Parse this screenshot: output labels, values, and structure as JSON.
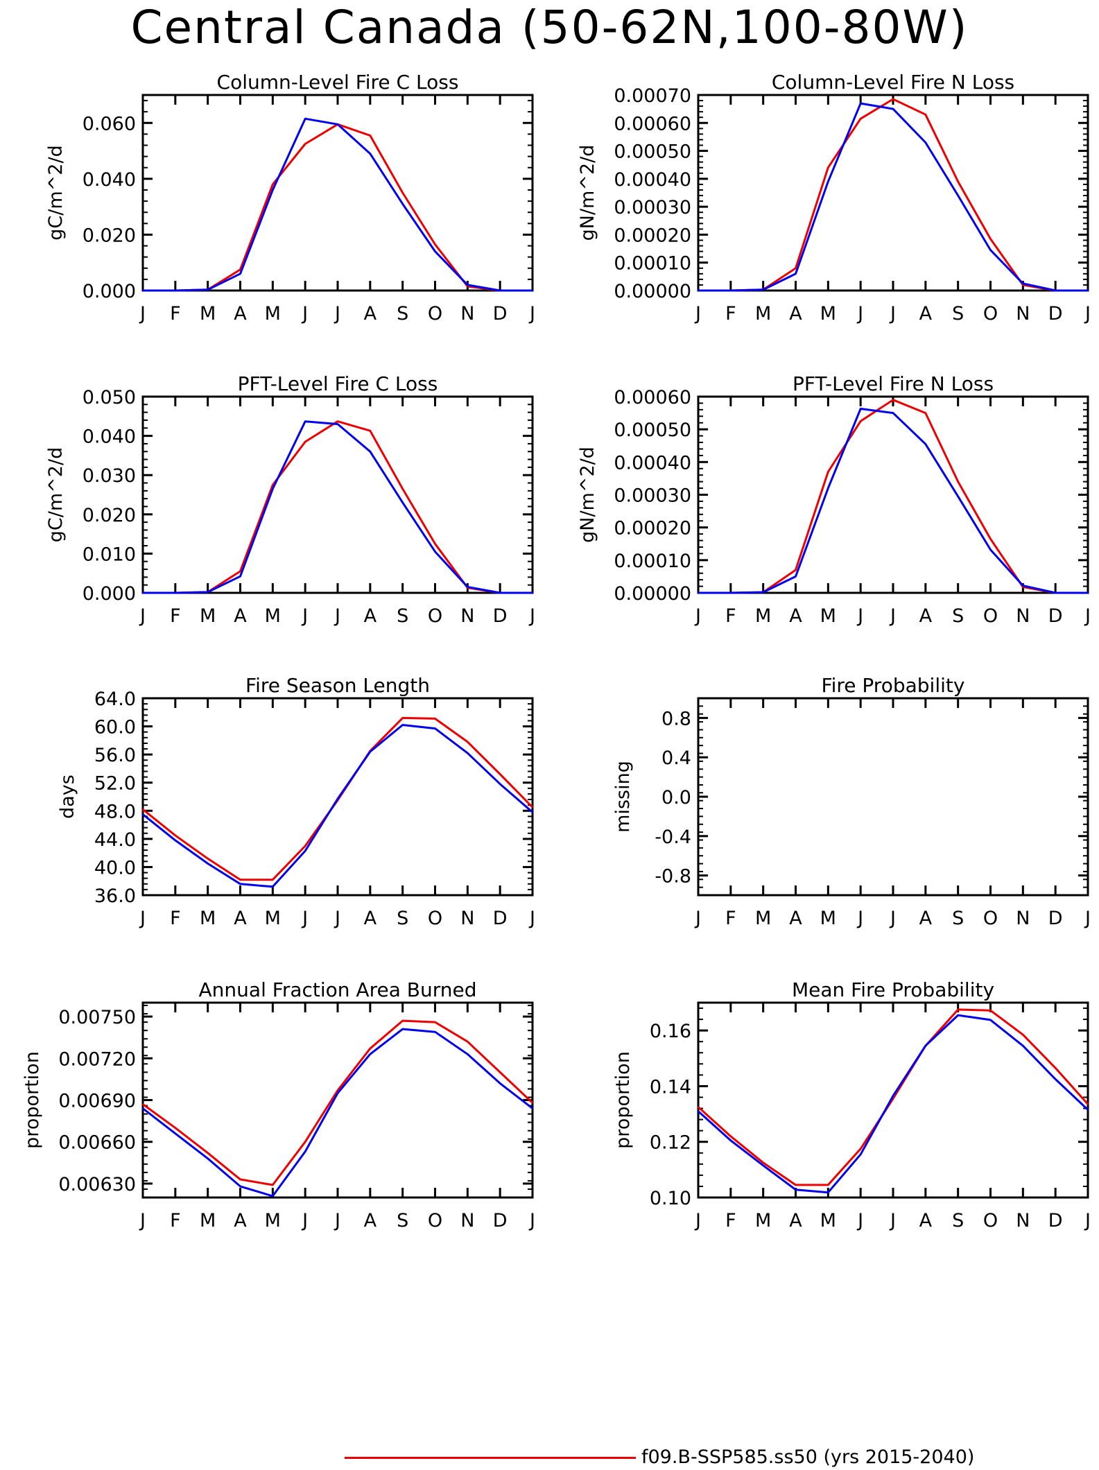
{
  "title": "Central Canada (50-62N,100-80W)",
  "colors": {
    "series1": "#ee0000",
    "series2": "#0000ee",
    "axis": "#000000"
  },
  "legend": {
    "label": "f09.B-SSP585.ss50 (yrs 2015-2040)"
  },
  "chart_data": [
    {
      "type": "line",
      "title": "Column-Level Fire C Loss",
      "ylabel": "gC/m^2/d",
      "categories": [
        "J",
        "F",
        "M",
        "A",
        "M",
        "J",
        "J",
        "A",
        "S",
        "O",
        "N",
        "D",
        "J"
      ],
      "ylim": [
        0,
        0.07
      ],
      "yticks": [
        0,
        0.02,
        0.04,
        0.06
      ],
      "ytick_labels": [
        "0.000",
        "0.020",
        "0.040",
        "0.060"
      ],
      "series": [
        {
          "values": [
            0,
            0,
            0.0003,
            0.0075,
            0.038,
            0.0525,
            0.0595,
            0.0555,
            0.035,
            0.0165,
            0.0015,
            0,
            0
          ]
        },
        {
          "values": [
            0,
            0,
            0.0003,
            0.006,
            0.036,
            0.0615,
            0.0595,
            0.049,
            0.031,
            0.014,
            0.002,
            0,
            0
          ]
        }
      ]
    },
    {
      "type": "line",
      "title": "Column-Level Fire N Loss",
      "ylabel": "gN/m^2/d",
      "categories": [
        "J",
        "F",
        "M",
        "A",
        "M",
        "J",
        "J",
        "A",
        "S",
        "O",
        "N",
        "D",
        "J"
      ],
      "ylim": [
        0,
        0.0007
      ],
      "yticks": [
        0,
        0.0001,
        0.0002,
        0.0003,
        0.0004,
        0.0005,
        0.0006,
        0.0007
      ],
      "ytick_labels": [
        "0.00000",
        "0.00010",
        "0.00020",
        "0.00030",
        "0.00040",
        "0.00050",
        "0.00060",
        "0.00070"
      ],
      "series": [
        {
          "values": [
            0,
            0,
            3e-06,
            8e-05,
            0.00044,
            0.000615,
            0.000685,
            0.00063,
            0.00039,
            0.000185,
            2e-05,
            0,
            0
          ]
        },
        {
          "values": [
            0,
            0,
            3e-06,
            6e-05,
            0.00039,
            0.00067,
            0.00065,
            0.00053,
            0.00034,
            0.000145,
            2.5e-05,
            0,
            0
          ]
        }
      ]
    },
    {
      "type": "line",
      "title": "PFT-Level Fire C Loss",
      "ylabel": "gC/m^2/d",
      "categories": [
        "J",
        "F",
        "M",
        "A",
        "M",
        "J",
        "J",
        "A",
        "S",
        "O",
        "N",
        "D",
        "J"
      ],
      "ylim": [
        0,
        0.05
      ],
      "yticks": [
        0,
        0.01,
        0.02,
        0.03,
        0.04,
        0.05
      ],
      "ytick_labels": [
        "0.000",
        "0.010",
        "0.020",
        "0.030",
        "0.040",
        "0.050"
      ],
      "series": [
        {
          "values": [
            0,
            0,
            0.0002,
            0.0055,
            0.0275,
            0.0385,
            0.0437,
            0.0413,
            0.0265,
            0.0125,
            0.0013,
            0,
            0
          ]
        },
        {
          "values": [
            0,
            0,
            0.0002,
            0.0042,
            0.0265,
            0.0437,
            0.043,
            0.036,
            0.023,
            0.0105,
            0.0015,
            0,
            0
          ]
        }
      ]
    },
    {
      "type": "line",
      "title": "PFT-Level Fire N Loss",
      "ylabel": "gN/m^2/d",
      "categories": [
        "J",
        "F",
        "M",
        "A",
        "M",
        "J",
        "J",
        "A",
        "S",
        "O",
        "N",
        "D",
        "J"
      ],
      "ylim": [
        0,
        0.0006
      ],
      "yticks": [
        0,
        0.0001,
        0.0002,
        0.0003,
        0.0004,
        0.0005,
        0.0006
      ],
      "ytick_labels": [
        "0.00000",
        "0.00010",
        "0.00020",
        "0.00030",
        "0.00040",
        "0.00050",
        "0.00060"
      ],
      "series": [
        {
          "values": [
            0,
            0,
            2e-06,
            7e-05,
            0.00037,
            0.000525,
            0.00059,
            0.00055,
            0.00034,
            0.000165,
            1.8e-05,
            0,
            0
          ]
        },
        {
          "values": [
            0,
            0,
            2e-06,
            5e-05,
            0.00032,
            0.000563,
            0.00055,
            0.000455,
            0.000295,
            0.000132,
            2.2e-05,
            0,
            0
          ]
        }
      ]
    },
    {
      "type": "line",
      "title": "Fire Season Length",
      "ylabel": "days",
      "categories": [
        "J",
        "F",
        "M",
        "A",
        "M",
        "J",
        "J",
        "A",
        "S",
        "O",
        "N",
        "D",
        "J"
      ],
      "ylim": [
        36,
        64
      ],
      "yticks": [
        36,
        40,
        44,
        48,
        52,
        56,
        60,
        64
      ],
      "ytick_labels": [
        "36.0",
        "40.0",
        "44.0",
        "48.0",
        "52.0",
        "56.0",
        "60.0",
        "64.0"
      ],
      "series": [
        {
          "values": [
            48.2,
            44.5,
            41.2,
            38.2,
            38.2,
            43,
            49.5,
            56.5,
            61.2,
            61.1,
            57.8,
            53.2,
            48.5
          ]
        },
        {
          "values": [
            47.5,
            43.8,
            40.5,
            37.6,
            37.2,
            42.3,
            49.7,
            56.4,
            60.2,
            59.7,
            56.2,
            51.8,
            47.8
          ]
        }
      ]
    },
    {
      "type": "line",
      "title": "Fire Probability",
      "ylabel": "missing",
      "categories": [
        "J",
        "F",
        "M",
        "A",
        "M",
        "J",
        "J",
        "A",
        "S",
        "O",
        "N",
        "D",
        "J"
      ],
      "ylim": [
        -1,
        1
      ],
      "yticks": [
        -0.8,
        -0.4,
        0,
        0.4,
        0.8
      ],
      "ytick_labels": [
        "-0.8",
        "-0.4",
        "0.0",
        "0.4",
        "0.8"
      ],
      "series": []
    },
    {
      "type": "line",
      "title": "Annual Fraction Area Burned",
      "ylabel": "proportion",
      "categories": [
        "J",
        "F",
        "M",
        "A",
        "M",
        "J",
        "J",
        "A",
        "S",
        "O",
        "N",
        "D",
        "J"
      ],
      "ylim": [
        0.0062,
        0.0076
      ],
      "yticks": [
        0.0063,
        0.0066,
        0.0069,
        0.0072,
        0.0075
      ],
      "ytick_labels": [
        "0.00630",
        "0.00660",
        "0.00690",
        "0.00720",
        "0.00750"
      ],
      "series": [
        {
          "values": [
            0.00687,
            0.0067,
            0.00652,
            0.00633,
            0.00629,
            0.0066,
            0.00697,
            0.00727,
            0.00747,
            0.00746,
            0.00732,
            0.0071,
            0.00688
          ]
        },
        {
          "values": [
            0.00684,
            0.00666,
            0.00648,
            0.00628,
            0.00621,
            0.00653,
            0.00695,
            0.00723,
            0.00741,
            0.00739,
            0.00723,
            0.00702,
            0.00684
          ]
        }
      ]
    },
    {
      "type": "line",
      "title": "Mean Fire Probability",
      "ylabel": "proportion",
      "categories": [
        "J",
        "F",
        "M",
        "A",
        "M",
        "J",
        "J",
        "A",
        "S",
        "O",
        "N",
        "D",
        "J"
      ],
      "ylim": [
        0.1,
        0.17
      ],
      "yticks": [
        0.1,
        0.12,
        0.14,
        0.16
      ],
      "ytick_labels": [
        "0.10",
        "0.12",
        "0.14",
        "0.16"
      ],
      "series": [
        {
          "values": [
            0.1325,
            0.122,
            0.1125,
            0.1045,
            0.1045,
            0.1175,
            0.1355,
            0.1545,
            0.1675,
            0.1672,
            0.1585,
            0.1465,
            0.1335
          ]
        },
        {
          "values": [
            0.131,
            0.1205,
            0.1115,
            0.1028,
            0.1018,
            0.1155,
            0.1365,
            0.1545,
            0.1655,
            0.1638,
            0.1545,
            0.1425,
            0.1315
          ]
        }
      ]
    }
  ]
}
